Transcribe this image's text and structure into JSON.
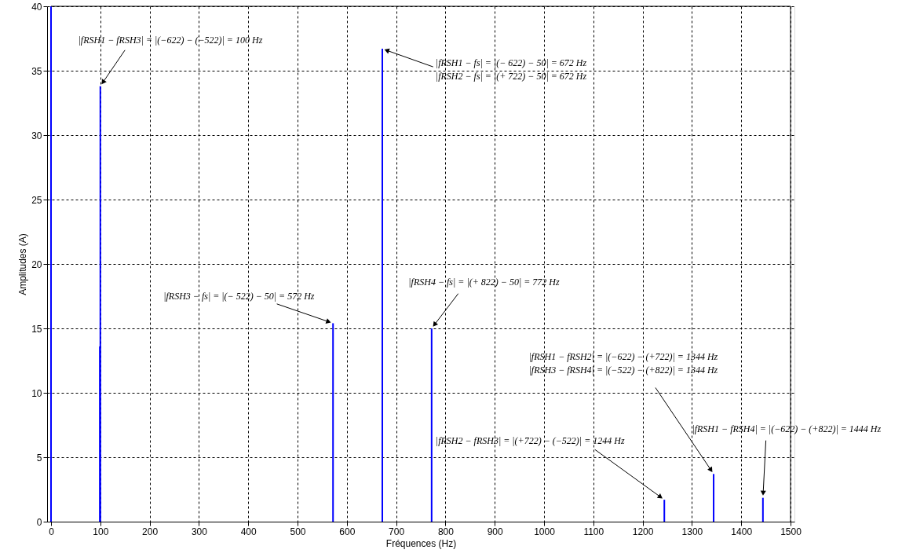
{
  "chart_data": {
    "type": "bar",
    "xlabel": "Fréquences (Hz)",
    "ylabel": "Amplitudes (A)",
    "x": [
      0,
      99,
      100,
      572,
      672,
      772,
      1244,
      1344,
      1444
    ],
    "values": [
      40,
      13.6,
      33.8,
      15.4,
      36.7,
      15.0,
      1.7,
      3.7,
      1.85
    ],
    "color": "#0000ff",
    "xlim": [
      0,
      1500
    ],
    "xticks": [
      0,
      100,
      200,
      300,
      400,
      500,
      600,
      700,
      800,
      900,
      1000,
      1100,
      1200,
      1300,
      1400,
      1500
    ],
    "ylim": [
      0,
      40
    ],
    "yticks": [
      0,
      5,
      10,
      15,
      20,
      25,
      30,
      35,
      40
    ],
    "grid": true,
    "annotations": [
      {
        "text": "|fRSH1 − fRSH3| = |(−622) − (−522)| = 100 Hz",
        "x": 100,
        "y": 33.8
      },
      {
        "text": "|fRSH1 − fs| = |(− 622) − 50| = 672 Hz\n|fRSH2 − fs| = |(+ 722) − 50| = 672 Hz",
        "x": 672,
        "y": 36.7
      },
      {
        "text": "|fRSH3 − fs| = |(− 522) − 50| = 572 Hz",
        "x": 572,
        "y": 15.4
      },
      {
        "text": "|fRSH4 − fs| = |(+ 822) − 50| = 772 Hz",
        "x": 772,
        "y": 15.0
      },
      {
        "text": "|fRSH1 − fRSH2| = |(−622) − (+722)| = 1344 Hz\n|fRSH3 − fRSH4| = |(−522) − (+822)| = 1344 Hz",
        "x": 1344,
        "y": 3.7
      },
      {
        "text": "|fRSH1 − fRSH4| = |(−622) − (+822)| = 1444 Hz",
        "x": 1444,
        "y": 1.85
      },
      {
        "text": "|fRSH2 − fRSH3| = |(+722) − (−522)| = 1244 Hz",
        "x": 1244,
        "y": 1.7
      }
    ]
  }
}
